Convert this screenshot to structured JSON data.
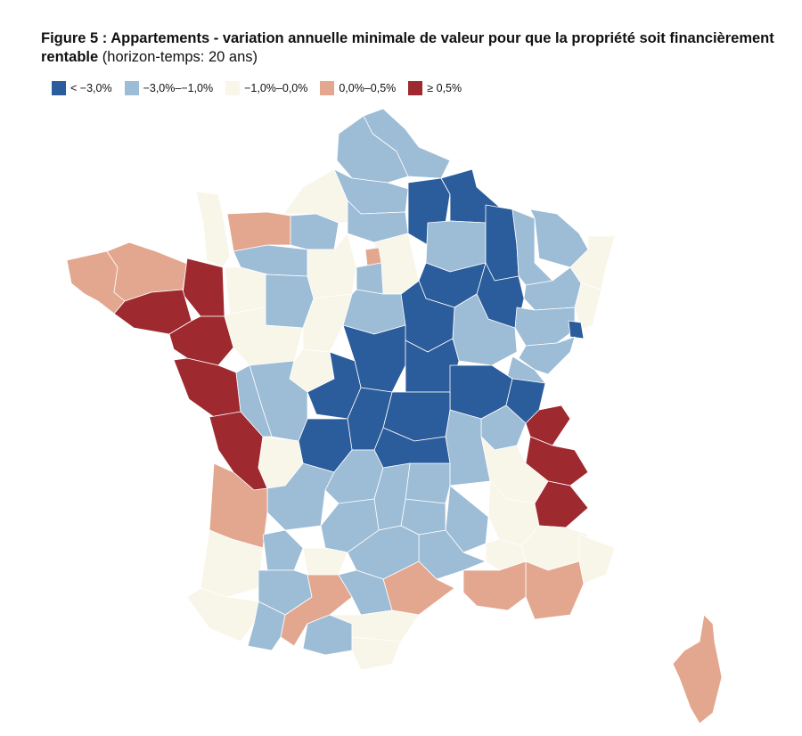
{
  "title": {
    "bold": "Figure 5 : Appartements - variation annuelle minimale de valeur pour que la propriété soit financièrement rentable",
    "normal": " (horizon-temps: 20 ans)"
  },
  "legend": [
    {
      "label": "< −3,0%",
      "color": "#2b5c9b"
    },
    {
      "label": "−3,0%–−1,0%",
      "color": "#9dbcd6"
    },
    {
      "label": "−1,0%–0,0%",
      "color": "#f8f5e9"
    },
    {
      "label": "0,0%–0,5%",
      "color": "#e3a78f"
    },
    {
      "label": "≥ 0,5%",
      "color": "#9e2a30"
    }
  ],
  "colors": {
    "lt_m3": "#2b5c9b",
    "m3_m1": "#9dbcd6",
    "m1_0": "#f8f5e9",
    "0_05": "#e3a78f",
    "ge_05": "#9e2a30"
  },
  "departments": [
    {
      "class": "0_05",
      "name": "finistere"
    },
    {
      "class": "0_05",
      "name": "cotes-d-armor"
    },
    {
      "class": "ge_05",
      "name": "ille-et-vilaine"
    },
    {
      "class": "ge_05",
      "name": "morbihan"
    },
    {
      "class": "ge_05",
      "name": "loire-atlantique"
    },
    {
      "class": "ge_05",
      "name": "vendee"
    },
    {
      "class": "ge_05",
      "name": "charente-maritime"
    },
    {
      "class": "m1_0",
      "name": "manche"
    },
    {
      "class": "0_05",
      "name": "calvados"
    },
    {
      "class": "m3_m1",
      "name": "orne"
    },
    {
      "class": "m1_0",
      "name": "mayenne"
    },
    {
      "class": "m3_m1",
      "name": "sarthe"
    },
    {
      "class": "m1_0",
      "name": "maine-et-loire"
    },
    {
      "class": "m3_m1",
      "name": "eure"
    },
    {
      "class": "m1_0",
      "name": "seine-maritime"
    },
    {
      "class": "m3_m1",
      "name": "nord"
    },
    {
      "class": "m3_m1",
      "name": "pas-de-calais"
    },
    {
      "class": "m3_m1",
      "name": "somme"
    },
    {
      "class": "m3_m1",
      "name": "oise"
    },
    {
      "class": "lt_m3",
      "name": "aisne"
    },
    {
      "class": "lt_m3",
      "name": "ardennes"
    },
    {
      "class": "m3_m1",
      "name": "marne"
    },
    {
      "class": "lt_m3",
      "name": "meuse"
    },
    {
      "class": "m3_m1",
      "name": "meurthe-et-moselle"
    },
    {
      "class": "m3_m1",
      "name": "moselle"
    },
    {
      "class": "m1_0",
      "name": "bas-rhin"
    },
    {
      "class": "m1_0",
      "name": "haut-rhin"
    },
    {
      "class": "m3_m1",
      "name": "vosges"
    },
    {
      "class": "lt_m3",
      "name": "haute-marne"
    },
    {
      "class": "lt_m3",
      "name": "aube"
    },
    {
      "class": "m3_m1",
      "name": "haute-saone"
    },
    {
      "class": "lt_m3",
      "name": "territoire-de-belfort"
    },
    {
      "class": "m3_m1",
      "name": "doubs"
    },
    {
      "class": "m3_m1",
      "name": "jura"
    },
    {
      "class": "m3_m1",
      "name": "cote-d-or"
    },
    {
      "class": "lt_m3",
      "name": "yonne"
    },
    {
      "class": "m1_0",
      "name": "seine-et-marne"
    },
    {
      "class": "0_05",
      "name": "paris"
    },
    {
      "class": "m3_m1",
      "name": "essonne"
    },
    {
      "class": "m1_0",
      "name": "eure-et-loir"
    },
    {
      "class": "m3_m1",
      "name": "loiret"
    },
    {
      "class": "m1_0",
      "name": "loir-et-cher"
    },
    {
      "class": "m1_0",
      "name": "indre-et-loire"
    },
    {
      "class": "lt_m3",
      "name": "cher"
    },
    {
      "class": "lt_m3",
      "name": "nievre"
    },
    {
      "class": "lt_m3",
      "name": "indre"
    },
    {
      "class": "lt_m3",
      "name": "saone-et-loire"
    },
    {
      "class": "lt_m3",
      "name": "ain"
    },
    {
      "class": "ge_05",
      "name": "haute-savoie"
    },
    {
      "class": "ge_05",
      "name": "savoie"
    },
    {
      "class": "m3_m1",
      "name": "rhone"
    },
    {
      "class": "m1_0",
      "name": "isere"
    },
    {
      "class": "m1_0",
      "name": "drome"
    },
    {
      "class": "ge_05",
      "name": "hautes-alpes"
    },
    {
      "class": "m1_0",
      "name": "alpes-de-haute-provence"
    },
    {
      "class": "m1_0",
      "name": "alpes-maritimes"
    },
    {
      "class": "0_05",
      "name": "var"
    },
    {
      "class": "0_05",
      "name": "bouches-du-rhone"
    },
    {
      "class": "m1_0",
      "name": "vaucluse"
    },
    {
      "class": "m3_m1",
      "name": "ardeche"
    },
    {
      "class": "m3_m1",
      "name": "gard"
    },
    {
      "class": "0_05",
      "name": "herault"
    },
    {
      "class": "m3_m1",
      "name": "lozere"
    },
    {
      "class": "m3_m1",
      "name": "haute-loire"
    },
    {
      "class": "m3_m1",
      "name": "loire"
    },
    {
      "class": "lt_m3",
      "name": "allier"
    },
    {
      "class": "lt_m3",
      "name": "puy-de-dome"
    },
    {
      "class": "lt_m3",
      "name": "creuse"
    },
    {
      "class": "lt_m3",
      "name": "haute-vienne"
    },
    {
      "class": "m3_m1",
      "name": "correze"
    },
    {
      "class": "m3_m1",
      "name": "cantal"
    },
    {
      "class": "m3_m1",
      "name": "aveyron"
    },
    {
      "class": "m3_m1",
      "name": "vienne"
    },
    {
      "class": "m3_m1",
      "name": "deux-sevres"
    },
    {
      "class": "m1_0",
      "name": "charente"
    },
    {
      "class": "m3_m1",
      "name": "dordogne"
    },
    {
      "class": "0_05",
      "name": "gironde"
    },
    {
      "class": "m1_0",
      "name": "landes"
    },
    {
      "class": "m3_m1",
      "name": "lot-et-garonne"
    },
    {
      "class": "m3_m1",
      "name": "lot"
    },
    {
      "class": "m1_0",
      "name": "tarn-et-garonne"
    },
    {
      "class": "m3_m1",
      "name": "gers"
    },
    {
      "class": "0_05",
      "name": "haute-garonne"
    },
    {
      "class": "m3_m1",
      "name": "tarn"
    },
    {
      "class": "m1_0",
      "name": "pyrenees-atlantiques"
    },
    {
      "class": "m3_m1",
      "name": "hautes-pyrenees"
    },
    {
      "class": "m3_m1",
      "name": "ariege"
    },
    {
      "class": "m1_0",
      "name": "aude"
    },
    {
      "class": "m1_0",
      "name": "pyrenees-orientales"
    },
    {
      "class": "0_05",
      "name": "corse"
    }
  ]
}
